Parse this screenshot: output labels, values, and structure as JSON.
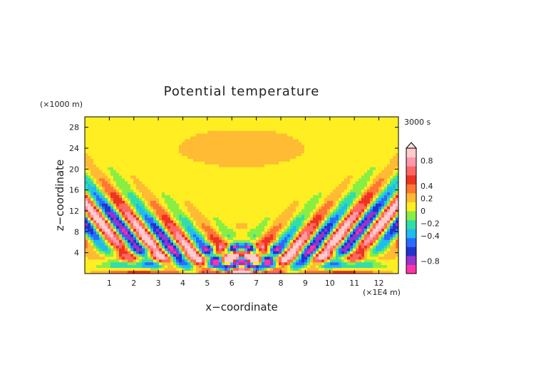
{
  "chart_data": {
    "type": "heatmap",
    "title": "Potential temperature",
    "xlabel": "x−coordinate",
    "ylabel": "z−coordinate",
    "x_units": "(×1E4 m)",
    "y_units": "(×1000 m)",
    "time_label": "3000 s",
    "xlim": [
      0,
      12.8
    ],
    "ylim": [
      0,
      30
    ],
    "x_ticks": [
      "1",
      "2",
      "3",
      "4",
      "5",
      "6",
      "7",
      "8",
      "9",
      "10",
      "11",
      "12"
    ],
    "y_ticks": [
      "4",
      "8",
      "12",
      "16",
      "20",
      "24",
      "28"
    ],
    "x_tick_values": [
      1,
      2,
      3,
      4,
      5,
      6,
      7,
      8,
      9,
      10,
      11,
      12
    ],
    "y_tick_values": [
      4,
      8,
      12,
      16,
      20,
      24,
      28
    ],
    "colorbar": {
      "labels": [
        "0.8",
        "0.4",
        "0.2",
        "0",
        "−0.2",
        "−0.4",
        "−0.8"
      ],
      "label_values": [
        0.8,
        0.4,
        0.2,
        0,
        -0.2,
        -0.4,
        -0.8
      ],
      "range": [
        -1.0,
        1.0
      ],
      "colors": [
        "#ff33aa",
        "#9933cc",
        "#2233cc",
        "#2a6bff",
        "#22bbee",
        "#33ddaa",
        "#88ee44",
        "#ffee22",
        "#ffbb33",
        "#ff7733",
        "#ee3322",
        "#ff6666",
        "#ff99aa",
        "#ffcccc"
      ]
    },
    "field_description": "Gravity wave pattern radiating upward and outward from a mountain source near x=6.4; alternating positive/negative anomalies ranging about -1 to 1"
  }
}
